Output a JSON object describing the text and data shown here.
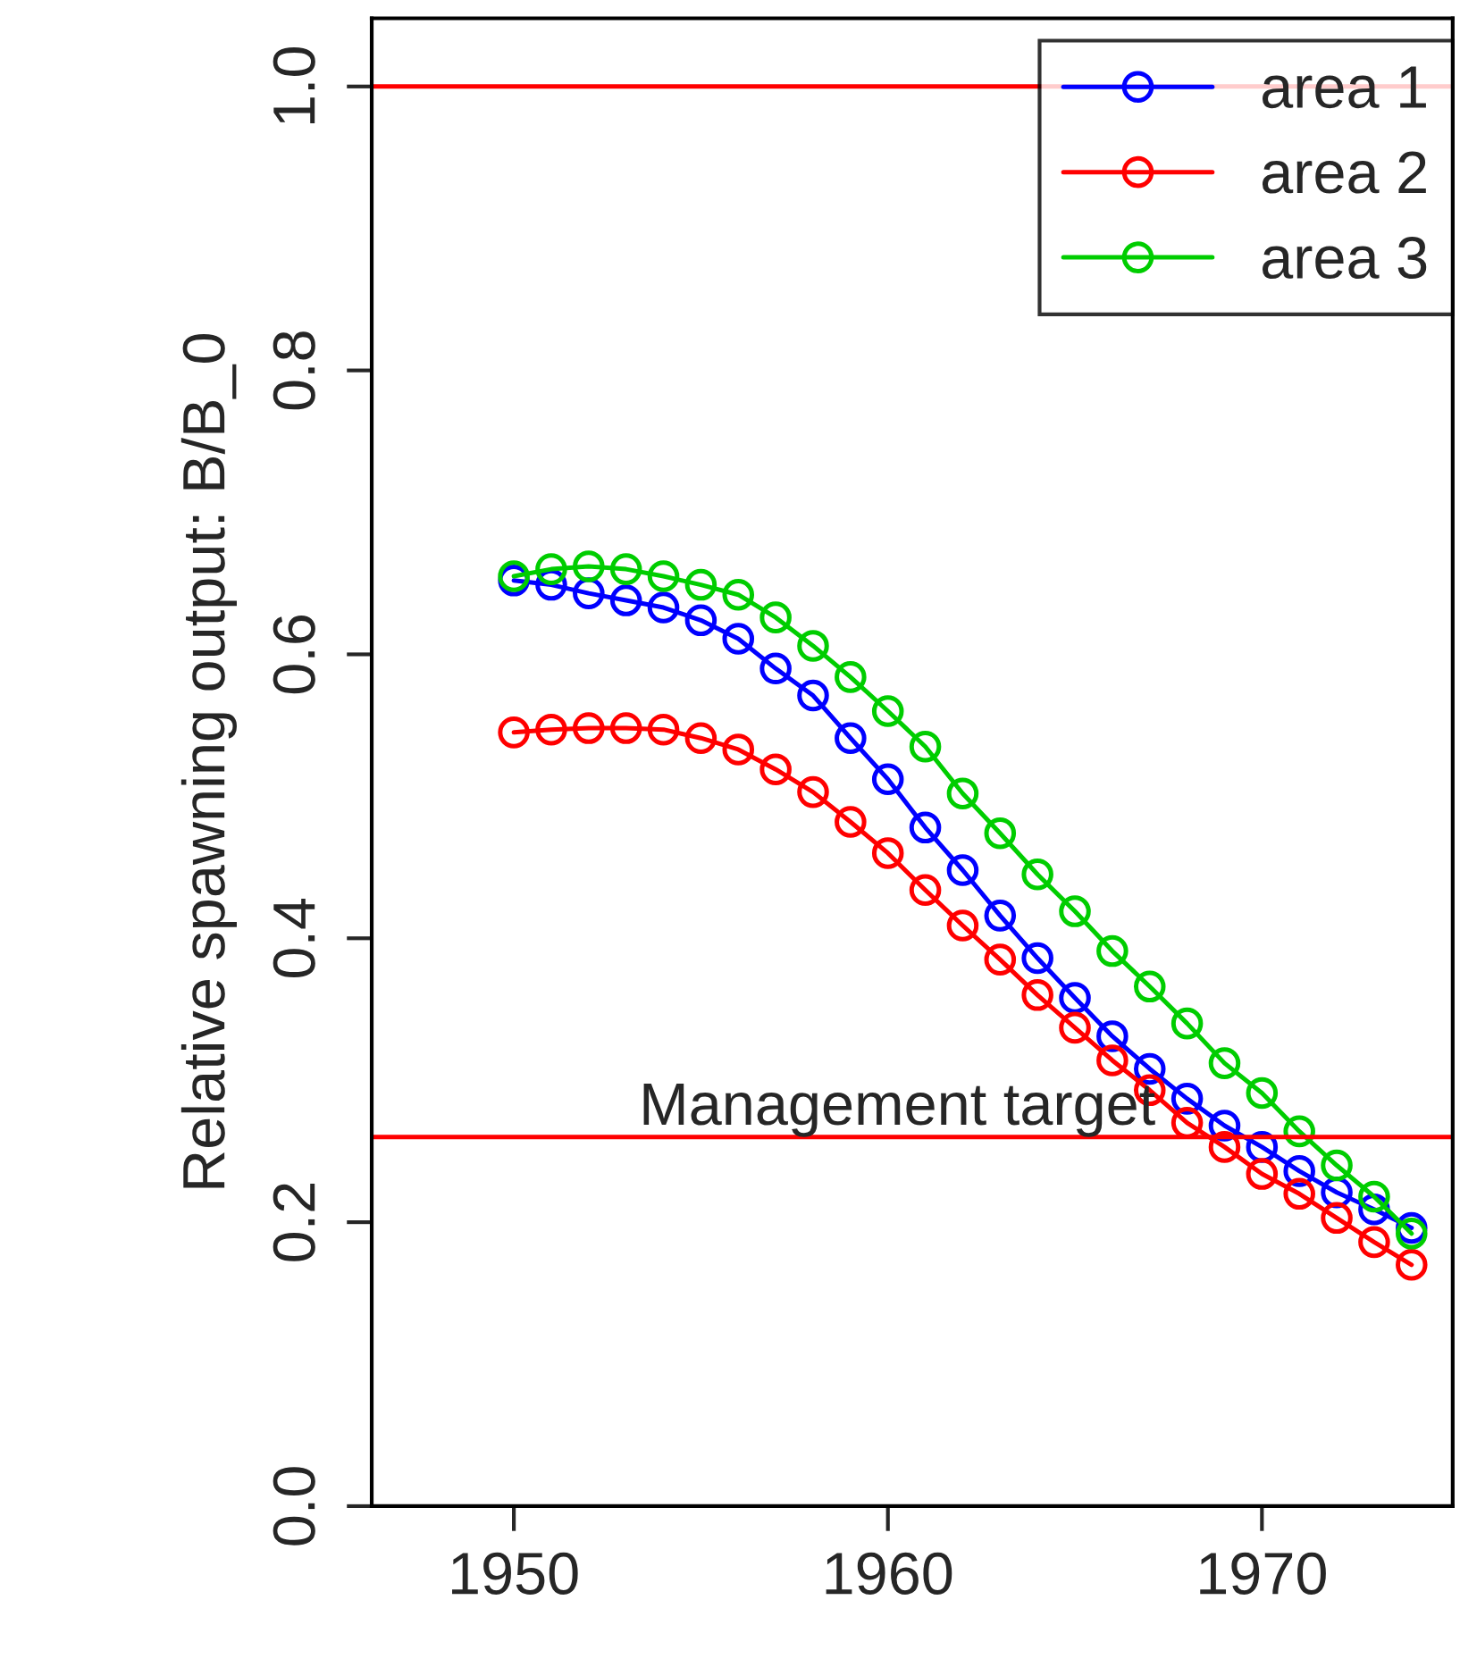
{
  "chart_data": {
    "type": "line",
    "ylabel": "Relative spawning output: B/B_0",
    "x": [
      1950,
      1951,
      1952,
      1953,
      1954,
      1955,
      1956,
      1957,
      1958,
      1959,
      1960,
      1961,
      1962,
      1963,
      1964,
      1965,
      1966,
      1967,
      1968,
      1969,
      1970,
      1971,
      1972,
      1973,
      1974
    ],
    "series": [
      {
        "name": "area 1",
        "color": "#0000ff",
        "values": [
          0.652,
          0.649,
          0.643,
          0.638,
          0.633,
          0.624,
          0.611,
          0.59,
          0.571,
          0.541,
          0.512,
          0.478,
          0.448,
          0.416,
          0.386,
          0.358,
          0.331,
          0.308,
          0.287,
          0.268,
          0.253,
          0.236,
          0.221,
          0.209,
          0.196
        ]
      },
      {
        "name": "area 2",
        "color": "#ff0000",
        "values": [
          0.545,
          0.547,
          0.548,
          0.548,
          0.547,
          0.541,
          0.533,
          0.519,
          0.503,
          0.482,
          0.46,
          0.434,
          0.409,
          0.385,
          0.36,
          0.337,
          0.314,
          0.293,
          0.27,
          0.253,
          0.234,
          0.22,
          0.203,
          0.186,
          0.17
        ]
      },
      {
        "name": "area 3",
        "color": "#00cd00",
        "values": [
          0.655,
          0.66,
          0.662,
          0.66,
          0.655,
          0.649,
          0.642,
          0.626,
          0.606,
          0.584,
          0.56,
          0.535,
          0.502,
          0.474,
          0.445,
          0.419,
          0.391,
          0.366,
          0.34,
          0.312,
          0.291,
          0.264,
          0.24,
          0.218,
          0.192
        ]
      }
    ],
    "xlim": [
      1946.2,
      1975.1
    ],
    "xticks": [
      1950,
      1960,
      1970
    ],
    "ylim": [
      0,
      1.048
    ],
    "yticks": [
      {
        "value": 0,
        "label": "0.0"
      },
      0.2,
      0.4,
      0.6,
      0.8,
      {
        "value": 1,
        "label": "1.0"
      }
    ],
    "ref_lines": [
      {
        "axis": "y",
        "value": 1.0,
        "label": null,
        "color": "#ff0000"
      },
      {
        "axis": "y",
        "value": 0.26,
        "label": "Management target",
        "color": "#ff0000"
      }
    ],
    "marker": "circle",
    "line_style": "solid",
    "grid": false,
    "legend": "top right"
  }
}
